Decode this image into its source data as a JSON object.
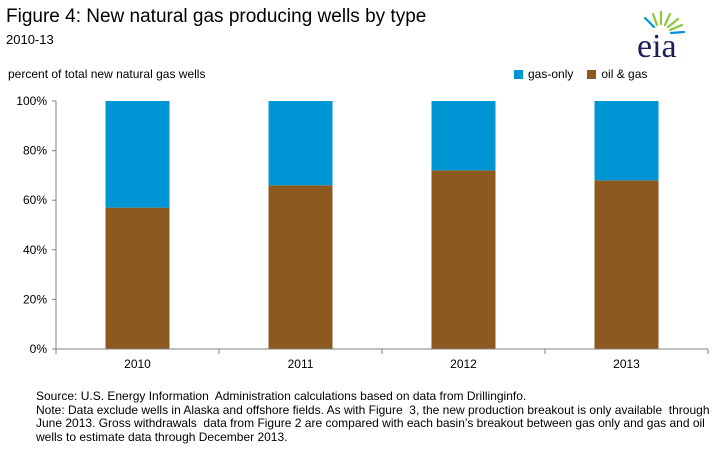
{
  "header": {
    "title": "Figure 4: New natural  gas producing wells by type",
    "subtitle": "2010-13",
    "logo_text": "eia"
  },
  "colors": {
    "gas_only": "#0096d6",
    "oil_gas": "#8c5a1f",
    "axis": "#808080",
    "gridline": "#d9d9d9"
  },
  "chart_data": {
    "type": "bar",
    "stacked": true,
    "ylabel": "percent of total new natural gas wells",
    "categories": [
      "2010",
      "2011",
      "2012",
      "2013"
    ],
    "series": [
      {
        "name": "oil & gas",
        "values": [
          57,
          66,
          72,
          68
        ]
      },
      {
        "name": "gas-only",
        "values": [
          43,
          34,
          28,
          32
        ]
      }
    ],
    "ylim": [
      0,
      100
    ],
    "yticks": [
      "0%",
      "20%",
      "40%",
      "60%",
      "80%",
      "100%"
    ],
    "grid": false,
    "legend_position": "top-right"
  },
  "legend": {
    "gas_only_label": "gas-only",
    "oil_gas_label": "oil & gas"
  },
  "footer": {
    "source": "Source: U.S. Energy Information  Administration calculations based on data from Drillinginfo.",
    "note": "Note: Data exclude wells in Alaska and offshore fields. As with Figure  3, the new production breakout is only available  through June 2013. Gross withdrawals  data from Figure 2 are compared with each basin’s breakout between gas only and gas and oil wells to estimate data through December 2013."
  }
}
